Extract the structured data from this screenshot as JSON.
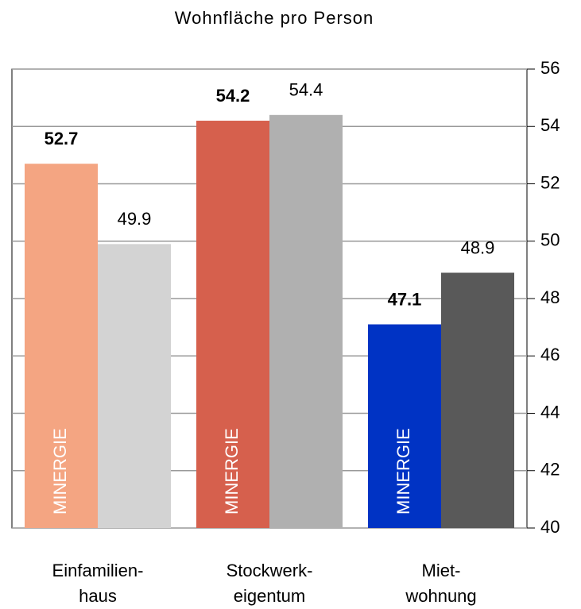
{
  "chart_data": {
    "type": "bar",
    "title": "Wohnfläche pro Person",
    "categories": [
      [
        "Einfamilien-",
        "haus"
      ],
      [
        "Stockwerk-",
        "eigentum"
      ],
      [
        "Miet-",
        "wohnung"
      ]
    ],
    "series": [
      {
        "name": "MINERGIE",
        "colors": [
          "#f4a582",
          "#d6604d",
          "#0033c4"
        ],
        "values": [
          52.7,
          54.2,
          47.1
        ],
        "bold": true
      },
      {
        "colors": [
          "#d3d3d3",
          "#b0b0b0",
          "#595959"
        ],
        "values": [
          49.9,
          54.4,
          48.9
        ],
        "bold": false
      }
    ],
    "ylim": [
      40,
      56
    ],
    "yticks": [
      40,
      42,
      44,
      46,
      48,
      50,
      52,
      54,
      56
    ],
    "grid": true,
    "y_axis_side": "right"
  }
}
